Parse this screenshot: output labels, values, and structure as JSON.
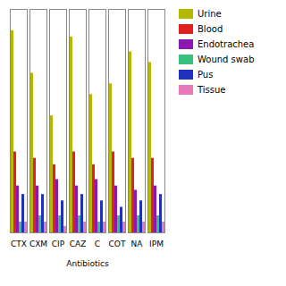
{
  "chart_data": {
    "type": "bar",
    "categories": [
      "CTX",
      "CXM",
      "CIP",
      "CAZ",
      "C",
      "COT",
      "NA",
      "IPM"
    ],
    "series": [
      {
        "name": "Urine",
        "color": "#b5b800",
        "values": [
          95,
          75,
          55,
          92,
          65,
          70,
          85,
          80
        ]
      },
      {
        "name": "Blood",
        "color": "#e02020",
        "values": [
          38,
          35,
          32,
          38,
          32,
          38,
          35,
          35
        ]
      },
      {
        "name": "Endotrachea",
        "color": "#8b18b0",
        "values": [
          22,
          22,
          25,
          22,
          25,
          22,
          20,
          22
        ]
      },
      {
        "name": "Wound swab",
        "color": "#38c080",
        "values": [
          5,
          8,
          8,
          8,
          5,
          8,
          8,
          8
        ]
      },
      {
        "name": "Pus",
        "color": "#2030c0",
        "values": [
          18,
          18,
          15,
          18,
          15,
          12,
          15,
          18
        ]
      },
      {
        "name": "Tissue",
        "color": "#e878b8",
        "values": [
          5,
          5,
          3,
          5,
          5,
          5,
          5,
          5
        ]
      }
    ],
    "xlabel": "Antibiotics",
    "ylim": [
      0,
      105
    ],
    "tick_labels": "x",
    "legend": "right"
  }
}
